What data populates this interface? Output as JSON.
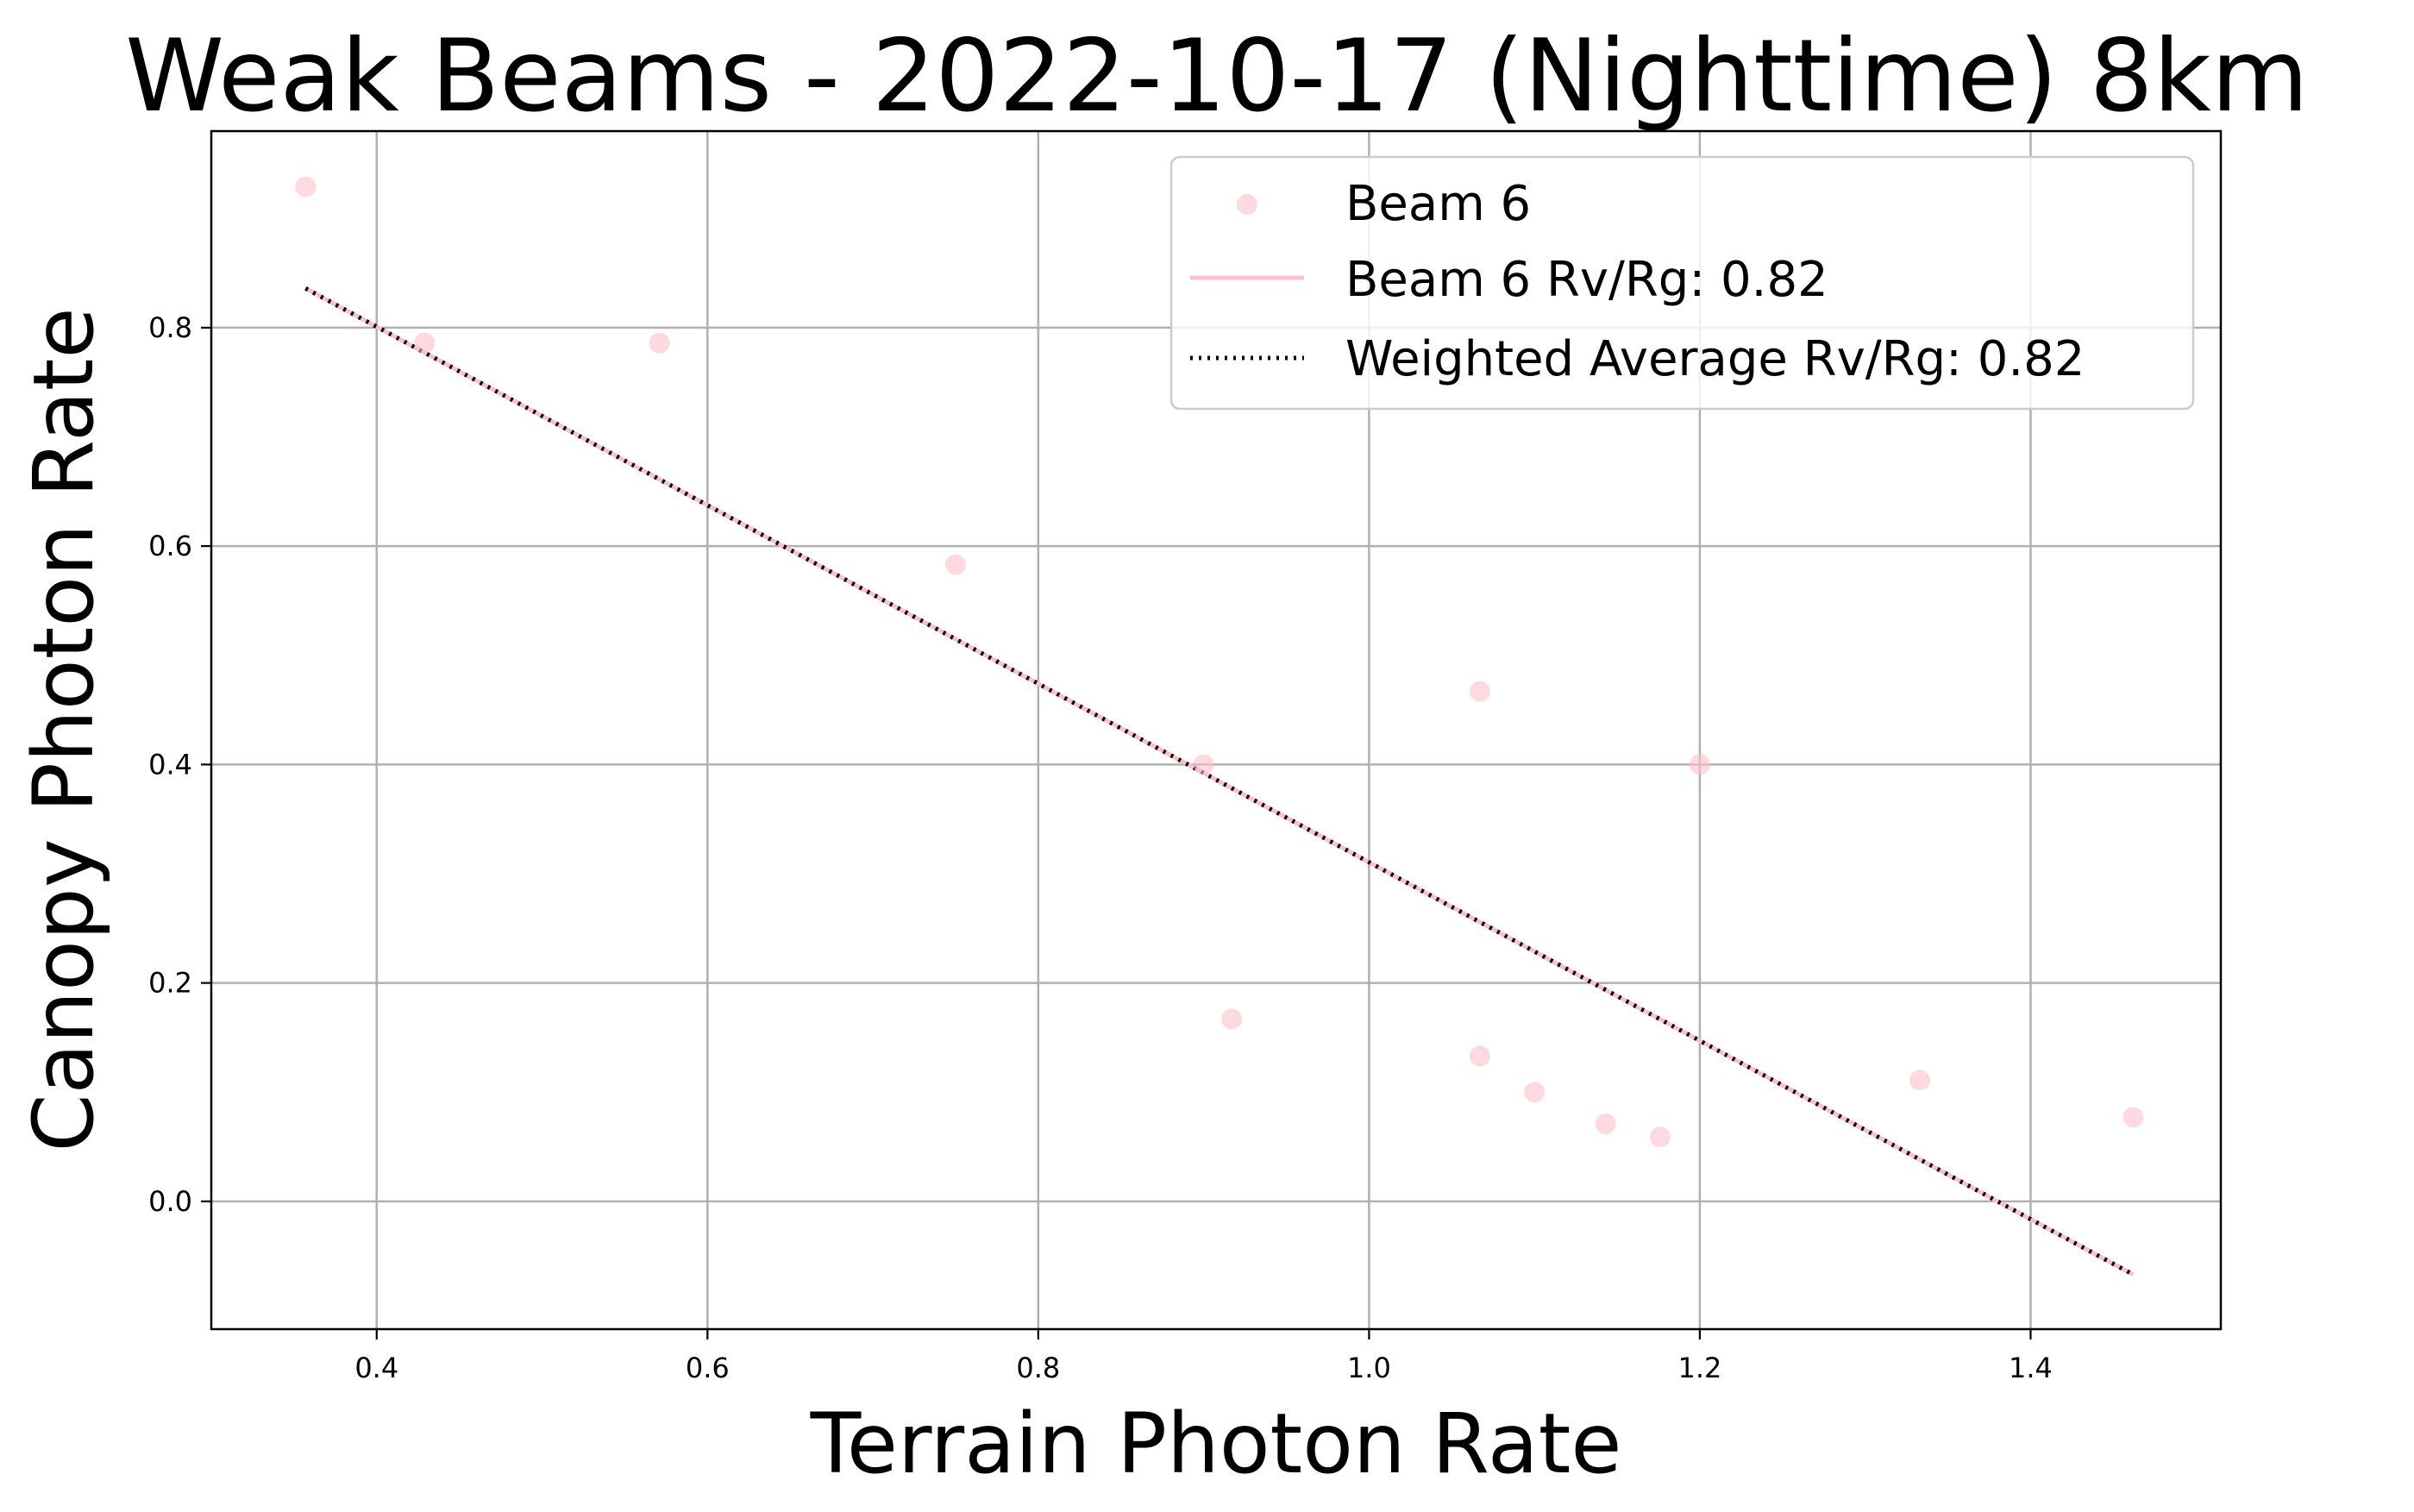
{
  "chart_data": {
    "type": "scatter",
    "title": "Weak Beams - 2022-10-17 (Nighttime) 8km",
    "xlabel": "Terrain Photon Rate",
    "ylabel": "Canopy Photon Rate",
    "xlim": [
      0.3,
      1.515
    ],
    "ylim": [
      -0.117,
      0.98
    ],
    "xticks": [
      0.4,
      0.6,
      0.8,
      1.0,
      1.2,
      1.4
    ],
    "xtick_labels": [
      "0.4",
      "0.6",
      "0.8",
      "1.0",
      "1.2",
      "1.4"
    ],
    "yticks": [
      0.0,
      0.2,
      0.4,
      0.6,
      0.8
    ],
    "ytick_labels": [
      "0.0",
      "0.2",
      "0.4",
      "0.6",
      "0.8"
    ],
    "grid": true,
    "legend_position": "top-right",
    "series": [
      {
        "name": "Beam 6",
        "kind": "scatter",
        "color": "#ffc0cb",
        "x": [
          0.357,
          0.429,
          0.571,
          0.75,
          0.9,
          0.917,
          1.067,
          1.067,
          1.1,
          1.143,
          1.176,
          1.2,
          1.333,
          1.462
        ],
        "y": [
          0.929,
          0.786,
          0.786,
          0.583,
          0.4,
          0.167,
          0.467,
          0.133,
          0.1,
          0.071,
          0.059,
          0.4,
          0.111,
          0.077
        ]
      },
      {
        "name": "Beam 6 Rv/Rg: 0.82",
        "kind": "line",
        "color": "#ffc0cb",
        "x": [
          0.357,
          1.462
        ],
        "y": [
          0.836,
          -0.067
        ]
      },
      {
        "name": "Weighted Average Rv/Rg: 0.82",
        "kind": "dotted-line",
        "color": "#000000",
        "x": [
          0.357,
          1.462
        ],
        "y": [
          0.836,
          -0.067
        ]
      }
    ]
  }
}
